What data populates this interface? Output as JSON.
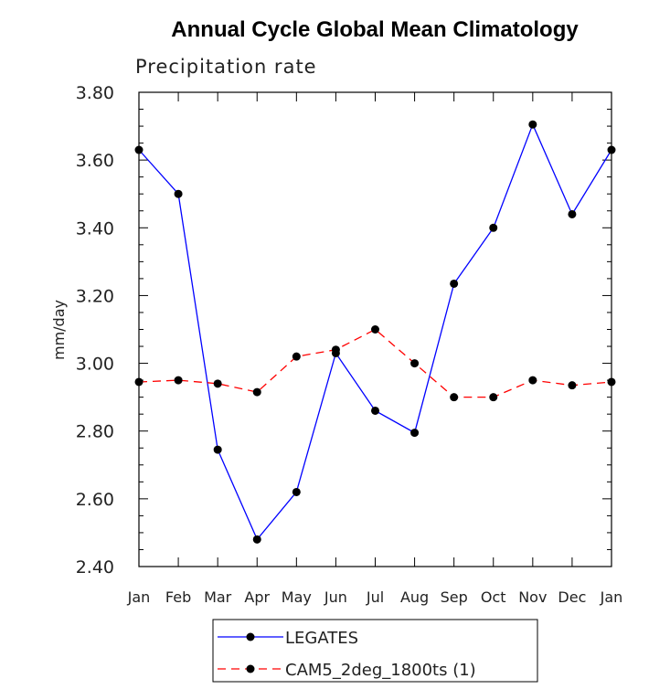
{
  "chart_data": {
    "type": "line",
    "title": "Annual Cycle Global Mean Climatology",
    "subtitle": "Precipitation rate",
    "xlabel": "",
    "ylabel": "mm/day",
    "categories": [
      "Jan",
      "Feb",
      "Mar",
      "Apr",
      "May",
      "Jun",
      "Jul",
      "Aug",
      "Sep",
      "Oct",
      "Nov",
      "Dec",
      "Jan"
    ],
    "ylim": [
      2.4,
      3.8
    ],
    "yticks": [
      "2.40",
      "2.60",
      "2.80",
      "3.00",
      "3.20",
      "3.40",
      "3.60",
      "3.80"
    ],
    "grid": false,
    "legend_position": "bottom",
    "series": [
      {
        "name": "LEGATES",
        "color": "#0000ff",
        "dash": "solid",
        "values": [
          3.63,
          3.5,
          2.745,
          2.48,
          2.62,
          3.03,
          2.86,
          2.795,
          3.235,
          3.4,
          3.705,
          3.44,
          3.63
        ]
      },
      {
        "name": "CAM5_2deg_1800ts (1)",
        "color": "#ff0000",
        "dash": "dashed",
        "values": [
          2.945,
          2.95,
          2.94,
          2.915,
          3.02,
          3.04,
          3.1,
          3.0,
          2.9,
          2.9,
          2.95,
          2.935,
          2.945
        ]
      }
    ]
  }
}
